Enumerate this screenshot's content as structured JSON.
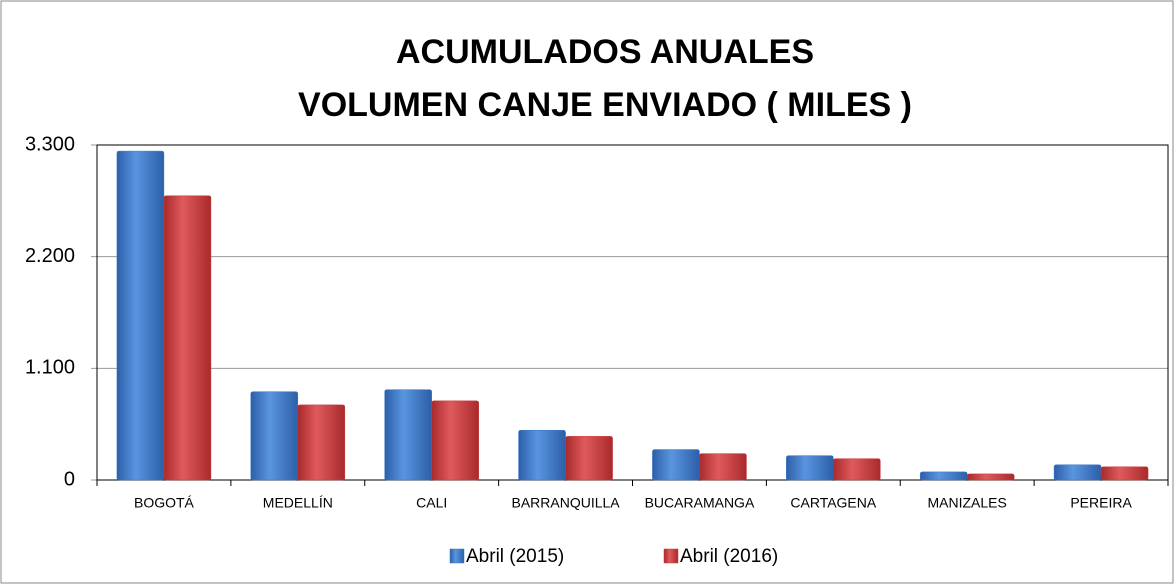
{
  "chart_data": {
    "type": "bar",
    "title": [
      "ACUMULADOS  ANUALES",
      "VOLUMEN CANJE ENVIADO  ( MILES )"
    ],
    "categories": [
      "BOGOTÁ",
      "MEDELLÍN",
      "CALI",
      "BARRANQUILLA",
      "BUCARAMANGA",
      "CARTAGENA",
      "MANIZALES",
      "PEREIRA"
    ],
    "series": [
      {
        "name": "Abril (2015)",
        "color": "#3a78c9",
        "values": [
          3240,
          870,
          890,
          490,
          300,
          240,
          80,
          150
        ]
      },
      {
        "name": "Abril (2016)",
        "color": "#c9383a",
        "values": [
          2800,
          740,
          780,
          430,
          260,
          210,
          60,
          130
        ]
      }
    ],
    "ylim": [
      0,
      3300
    ],
    "yticks": [
      0,
      {
        "value": 1100,
        "label": "1.100"
      },
      {
        "value": 2200,
        "label": "2.200"
      },
      {
        "value": 3300,
        "label": "3.300"
      }
    ],
    "grid": true,
    "legend": "bottom"
  }
}
